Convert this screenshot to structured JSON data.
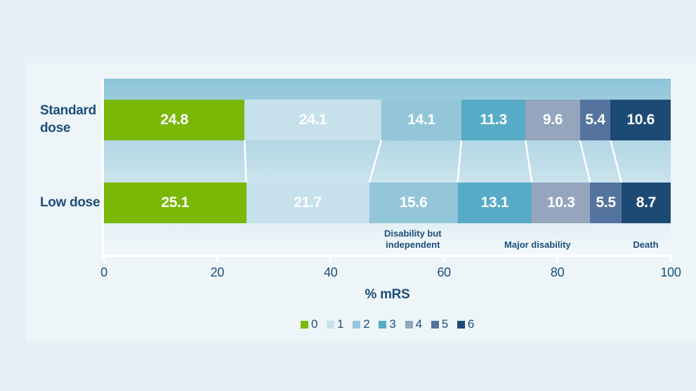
{
  "page": {
    "background_color": "#e7f0f6",
    "panel_color": "#eef5f9",
    "text_color": "#1d4e79",
    "plot_gradient_top": "#8fc5d9",
    "plot_gradient_bottom": "#f4f9fb"
  },
  "chart_data": {
    "type": "bar",
    "orientation": "horizontal",
    "stacked": true,
    "categories": [
      "Standard dose",
      "Low dose"
    ],
    "category_label_lines": [
      "Standard\ndose",
      "Low dose"
    ],
    "series": [
      {
        "name": "0",
        "color": "#7ab807",
        "values": [
          24.8,
          25.1
        ]
      },
      {
        "name": "1",
        "color": "#c6e1ec",
        "values": [
          24.1,
          21.7
        ]
      },
      {
        "name": "2",
        "color": "#93c6d8",
        "values": [
          14.1,
          15.6
        ]
      },
      {
        "name": "3",
        "color": "#57abc6",
        "values": [
          11.3,
          13.1
        ]
      },
      {
        "name": "4",
        "color": "#94a5bd",
        "values": [
          9.6,
          10.3
        ]
      },
      {
        "name": "5",
        "color": "#54749f",
        "values": [
          5.4,
          5.5
        ]
      },
      {
        "name": "6",
        "color": "#1d4a75",
        "values": [
          10.6,
          8.7
        ]
      }
    ],
    "xlabel": "% mRS",
    "xlim": [
      0,
      100
    ],
    "x_ticks": [
      0,
      20,
      40,
      60,
      80,
      100
    ],
    "grid": false,
    "legend_position": "bottom",
    "legend_entries": [
      "0",
      "1",
      "2",
      "3",
      "4",
      "5",
      "6"
    ],
    "annotations": [
      {
        "text": "Disability but\nindependent",
        "x_pct": 54.5
      },
      {
        "text": "Major disability",
        "x_pct": 76.5
      },
      {
        "text": "Death",
        "x_pct": 95.6
      }
    ],
    "connector_line_color": "#ffffff",
    "value_label_color": "#ffffff"
  }
}
